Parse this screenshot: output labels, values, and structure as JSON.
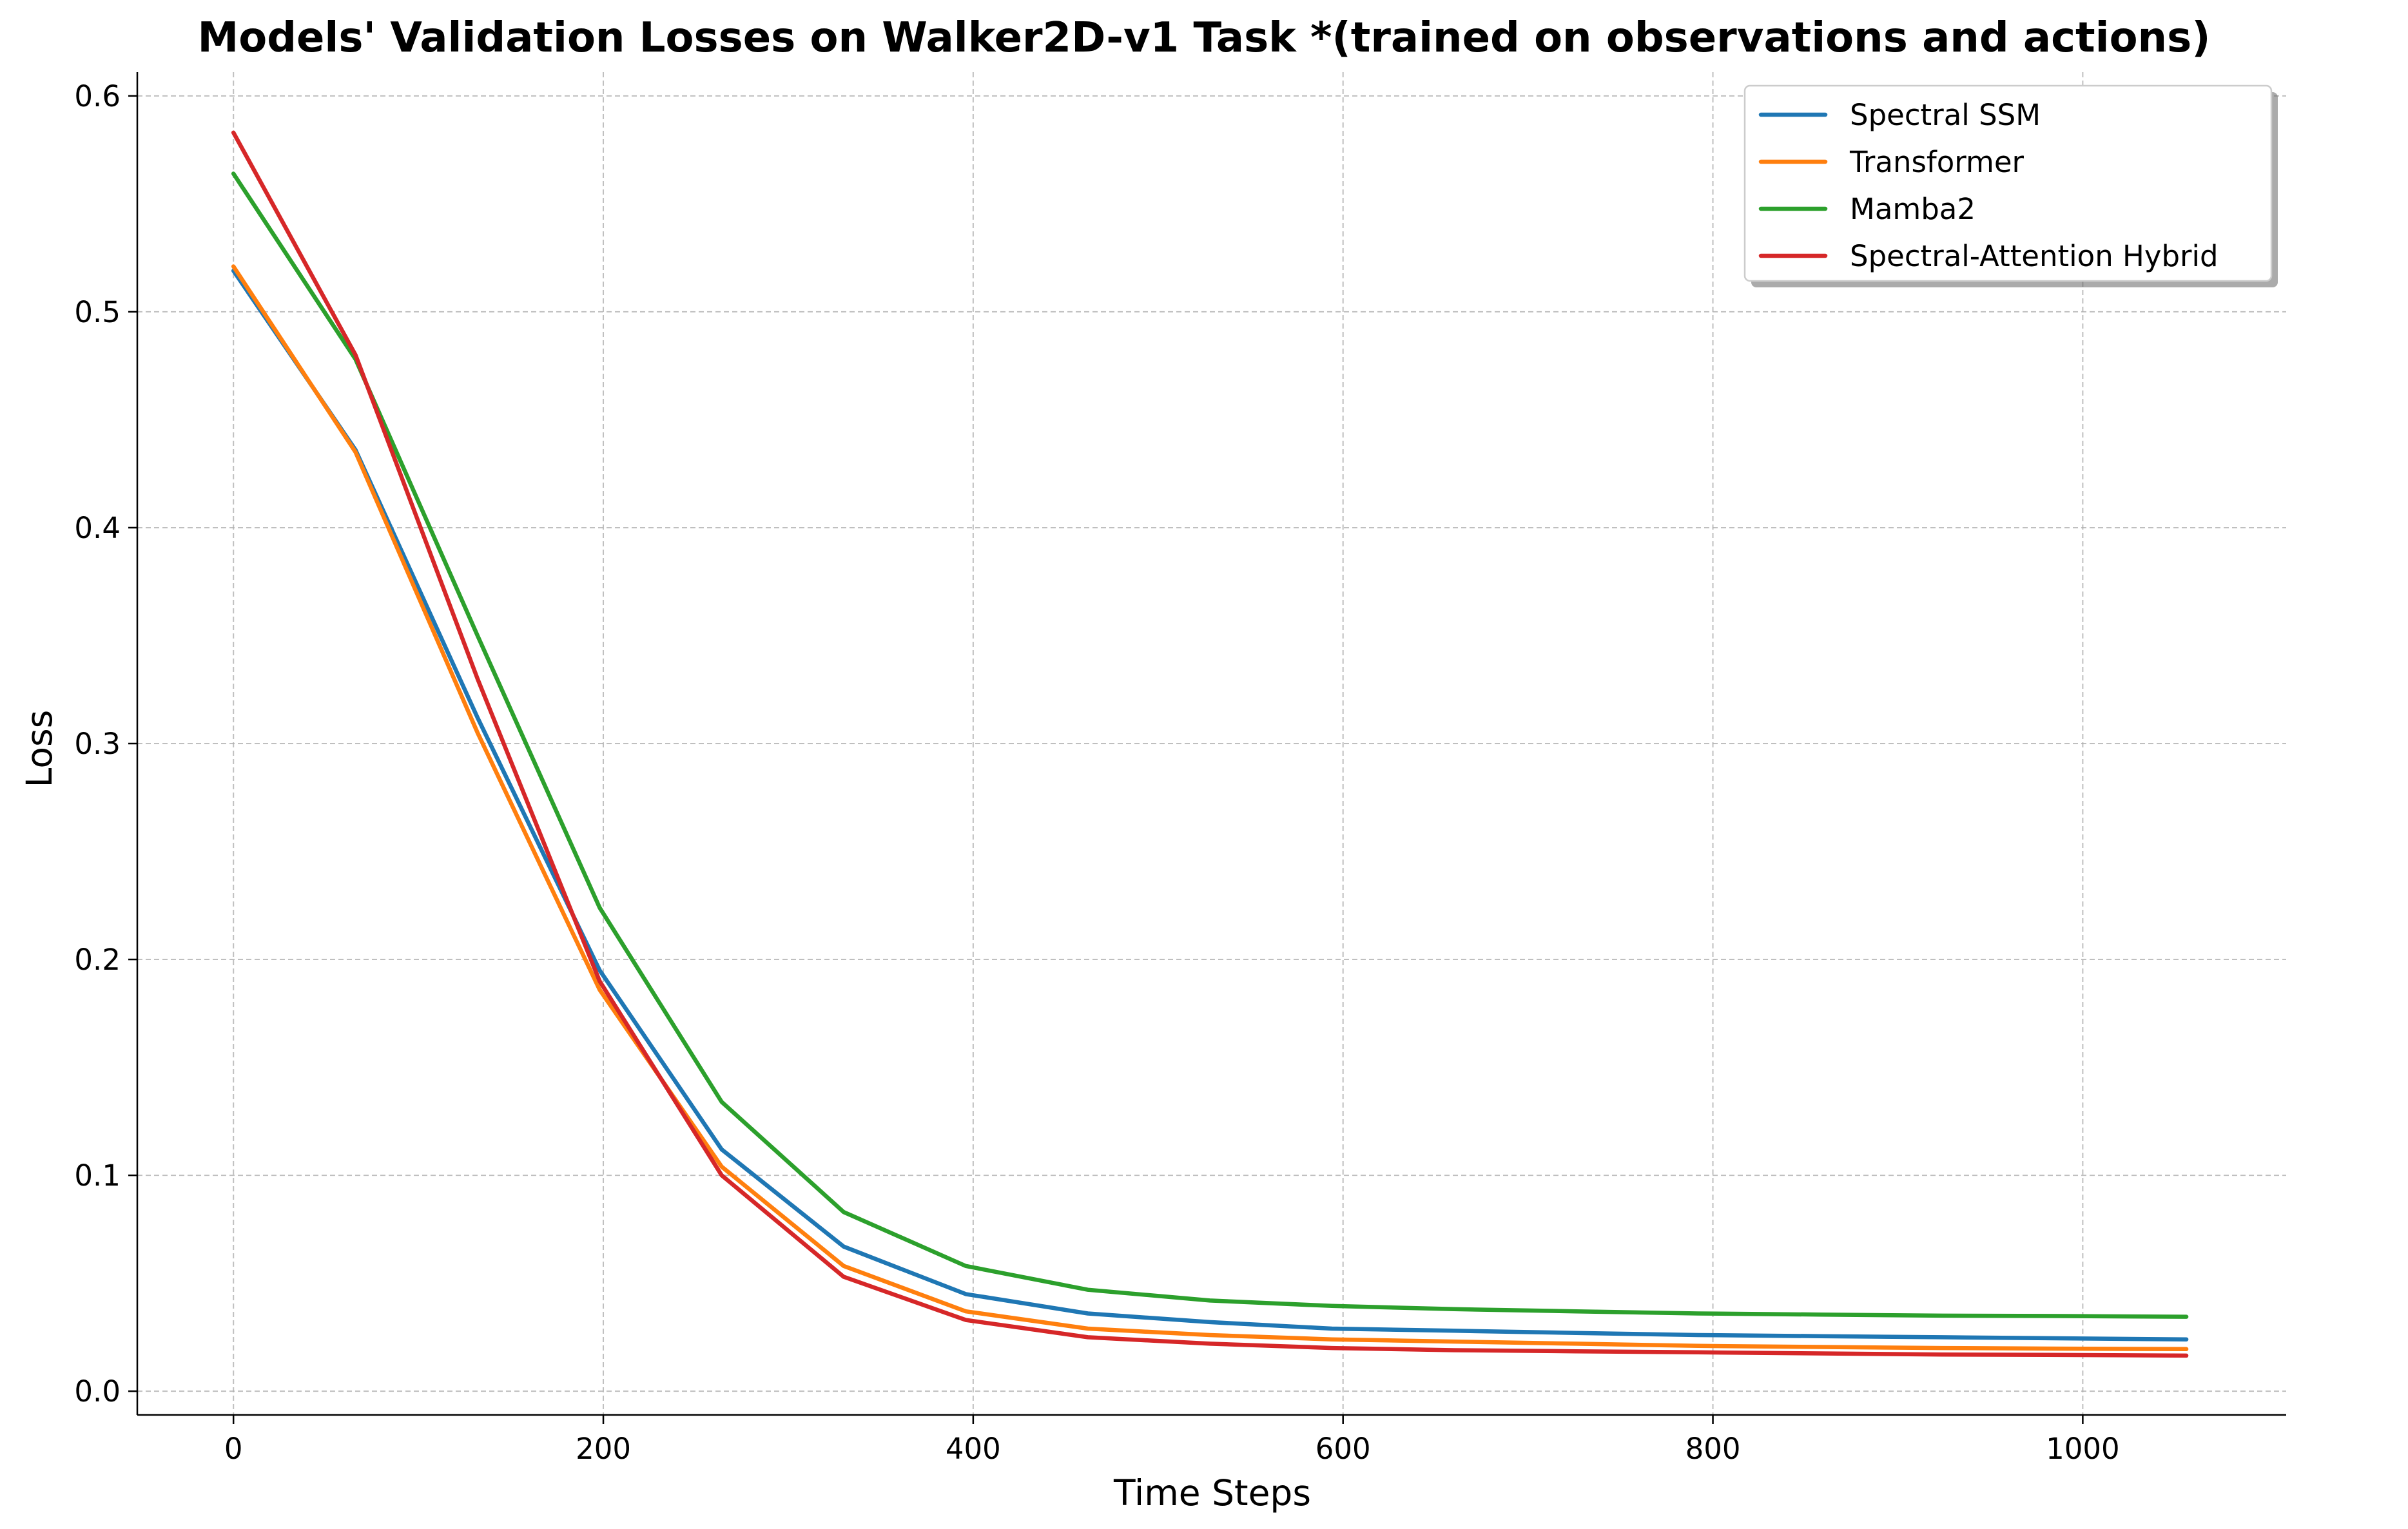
{
  "chart_data": {
    "type": "line",
    "title": "Models' Validation Losses on Walker2D-v1 Task *(trained on observations and actions)",
    "xlabel": "Time Steps",
    "ylabel": "Loss",
    "xlim": [
      -52,
      1110
    ],
    "ylim": [
      -0.011,
      0.611
    ],
    "xticks": [
      0,
      200,
      400,
      600,
      800,
      1000
    ],
    "yticks": [
      0.0,
      0.1,
      0.2,
      0.3,
      0.4,
      0.5,
      0.6
    ],
    "xtick_labels": [
      "0",
      "200",
      "400",
      "600",
      "800",
      "1000"
    ],
    "ytick_labels": [
      "0.0",
      "0.1",
      "0.2",
      "0.3",
      "0.4",
      "0.5",
      "0.6"
    ],
    "grid": true,
    "legend_position": "top-right",
    "x": [
      0,
      66,
      132,
      198,
      264,
      330,
      396,
      462,
      528,
      594,
      660,
      726,
      792,
      858,
      924,
      990,
      1056
    ],
    "series": [
      {
        "name": "Spectral SSM",
        "color": "#1f77b4",
        "values": [
          0.519,
          0.436,
          0.312,
          0.195,
          0.112,
          0.067,
          0.045,
          0.036,
          0.032,
          0.029,
          0.028,
          0.027,
          0.026,
          0.0255,
          0.025,
          0.0245,
          0.024
        ]
      },
      {
        "name": "Transformer",
        "color": "#ff7f0e",
        "values": [
          0.521,
          0.435,
          0.305,
          0.186,
          0.104,
          0.058,
          0.037,
          0.029,
          0.026,
          0.024,
          0.023,
          0.022,
          0.021,
          0.0205,
          0.02,
          0.0197,
          0.0195
        ]
      },
      {
        "name": "Mamba2",
        "color": "#2ca02c",
        "values": [
          0.564,
          0.478,
          0.35,
          0.224,
          0.134,
          0.083,
          0.058,
          0.047,
          0.042,
          0.0395,
          0.038,
          0.037,
          0.036,
          0.0355,
          0.035,
          0.0348,
          0.0345
        ]
      },
      {
        "name": "Spectral-Attention Hybrid",
        "color": "#d62728",
        "values": [
          0.583,
          0.48,
          0.33,
          0.19,
          0.1,
          0.053,
          0.033,
          0.025,
          0.022,
          0.02,
          0.019,
          0.0185,
          0.018,
          0.0175,
          0.017,
          0.0168,
          0.0165
        ]
      }
    ]
  }
}
